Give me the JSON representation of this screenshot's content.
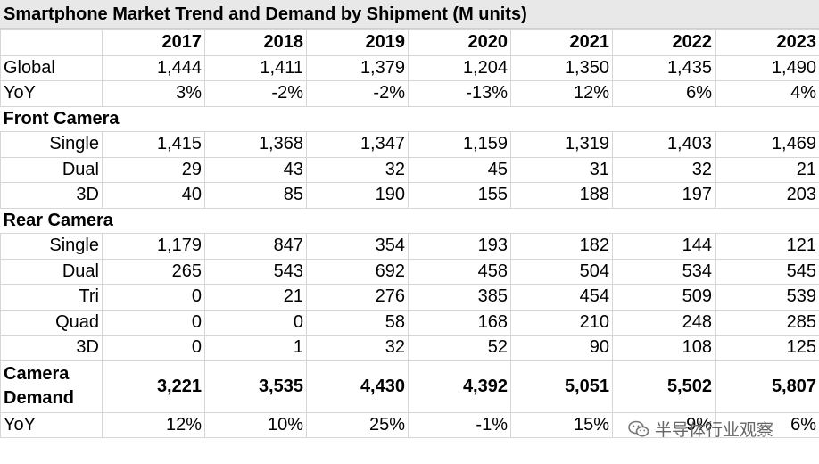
{
  "title": "Smartphone Market Trend and Demand by Shipment (M units)",
  "years": [
    "2017",
    "2018",
    "2019",
    "2020",
    "2021",
    "2022",
    "2023"
  ],
  "rows": {
    "global": {
      "label": "Global",
      "values": [
        "1,444",
        "1,411",
        "1,379",
        "1,204",
        "1,350",
        "1,435",
        "1,490"
      ]
    },
    "global_yoy": {
      "label": "YoY",
      "values": [
        "3%",
        "-2%",
        "-2%",
        "-13%",
        "12%",
        "6%",
        "4%"
      ]
    },
    "front_camera": {
      "label": "Front Camera"
    },
    "front_single": {
      "label": "Single",
      "values": [
        "1,415",
        "1,368",
        "1,347",
        "1,159",
        "1,319",
        "1,403",
        "1,469"
      ]
    },
    "front_dual": {
      "label": "Dual",
      "values": [
        "29",
        "43",
        "32",
        "45",
        "31",
        "32",
        "21"
      ]
    },
    "front_3d": {
      "label": "3D",
      "values": [
        "40",
        "85",
        "190",
        "155",
        "188",
        "197",
        "203"
      ]
    },
    "rear_camera": {
      "label": "Rear Camera"
    },
    "rear_single": {
      "label": "Single",
      "values": [
        "1,179",
        "847",
        "354",
        "193",
        "182",
        "144",
        "121"
      ]
    },
    "rear_dual": {
      "label": "Dual",
      "values": [
        "265",
        "543",
        "692",
        "458",
        "504",
        "534",
        "545"
      ]
    },
    "rear_tri": {
      "label": "Tri",
      "values": [
        "0",
        "21",
        "276",
        "385",
        "454",
        "509",
        "539"
      ]
    },
    "rear_quad": {
      "label": "Quad",
      "values": [
        "0",
        "0",
        "58",
        "168",
        "210",
        "248",
        "285"
      ]
    },
    "rear_3d": {
      "label": "3D",
      "values": [
        "0",
        "1",
        "32",
        "52",
        "90",
        "108",
        "125"
      ]
    },
    "camera_demand": {
      "label": "Camera Demand",
      "values": [
        "3,221",
        "3,535",
        "4,430",
        "4,392",
        "5,051",
        "5,502",
        "5,807"
      ]
    },
    "demand_yoy": {
      "label": "YoY",
      "values": [
        "12%",
        "10%",
        "25%",
        "-1%",
        "15%",
        "9%",
        "6%"
      ]
    }
  },
  "watermark": {
    "text": "半导体行业观察",
    "icon": "wechat-icon"
  }
}
